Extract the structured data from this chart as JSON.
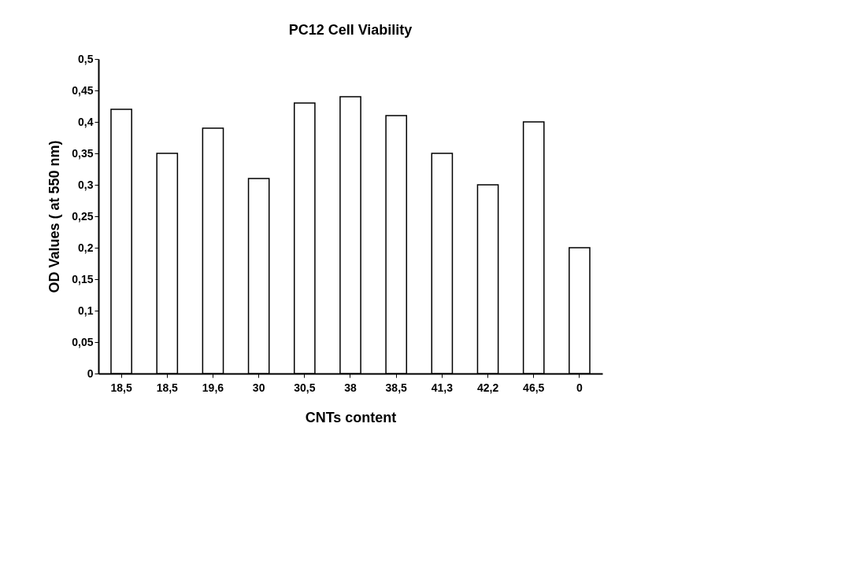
{
  "chart_data": {
    "type": "bar",
    "title": "PC12 Cell Viability",
    "xlabel": "CNTs content",
    "ylabel": "OD Values ( at 550 nm)",
    "categories": [
      "18,5",
      "18,5",
      "19,6",
      "30",
      "30,5",
      "38",
      "38,5",
      "41,3",
      "42,2",
      "46,5",
      "0"
    ],
    "values": [
      0.42,
      0.35,
      0.39,
      0.31,
      0.43,
      0.44,
      0.41,
      0.35,
      0.3,
      0.4,
      0.2
    ],
    "color": "#ffffff",
    "ylim": [
      0,
      0.5
    ],
    "yticks": [
      0,
      {
        "value": 0.05,
        "label": "0,05"
      },
      {
        "value": 0.1,
        "label": "0,1"
      },
      {
        "value": 0.15,
        "label": "0,15"
      },
      {
        "value": 0.2,
        "label": "0,2"
      },
      {
        "value": 0.25,
        "label": "0,25"
      },
      {
        "value": 0.3,
        "label": "0,3"
      },
      {
        "value": 0.35,
        "label": "0,35"
      },
      {
        "value": 0.4,
        "label": "0,4"
      },
      {
        "value": 0.45,
        "label": "0,45"
      },
      {
        "value": 0.5,
        "label": "0,5"
      }
    ],
    "grid": false
  }
}
